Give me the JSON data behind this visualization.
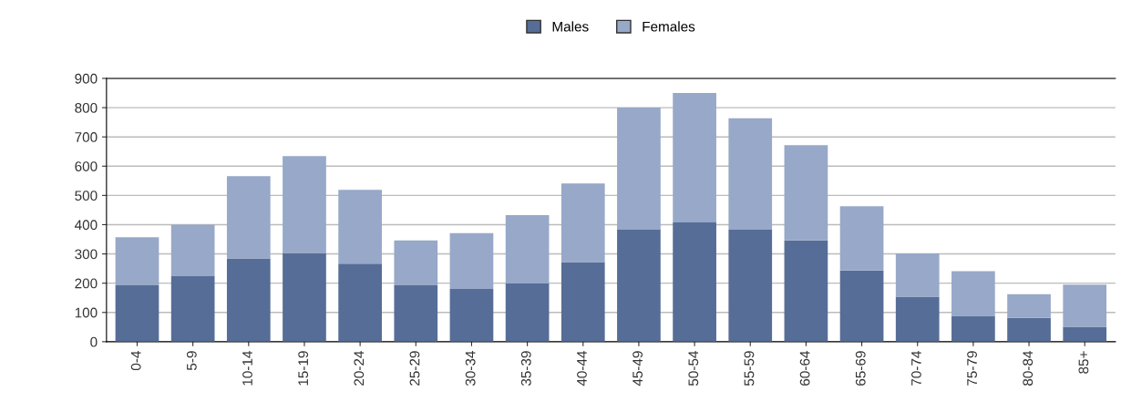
{
  "chart_data": {
    "type": "bar",
    "stacked": true,
    "categories": [
      "0-4",
      "5-9",
      "10-14",
      "15-19",
      "20-24",
      "25-29",
      "30-34",
      "35-39",
      "40-44",
      "45-49",
      "50-54",
      "55-59",
      "60-64",
      "65-69",
      "70-74",
      "75-79",
      "80-84",
      "85+"
    ],
    "series": [
      {
        "name": "Males",
        "color": "#566d97",
        "values": [
          193,
          224,
          285,
          303,
          267,
          193,
          180,
          199,
          272,
          383,
          408,
          383,
          346,
          243,
          154,
          88,
          81,
          51
        ]
      },
      {
        "name": "Females",
        "color": "#97a8c8",
        "values": [
          164,
          176,
          281,
          331,
          252,
          153,
          191,
          234,
          269,
          417,
          442,
          381,
          326,
          220,
          148,
          153,
          81,
          144
        ]
      }
    ],
    "ylim": [
      0,
      900
    ],
    "yticks": [
      0,
      100,
      200,
      300,
      400,
      500,
      600,
      700,
      800,
      900
    ],
    "grid": "y",
    "legend": "top"
  }
}
